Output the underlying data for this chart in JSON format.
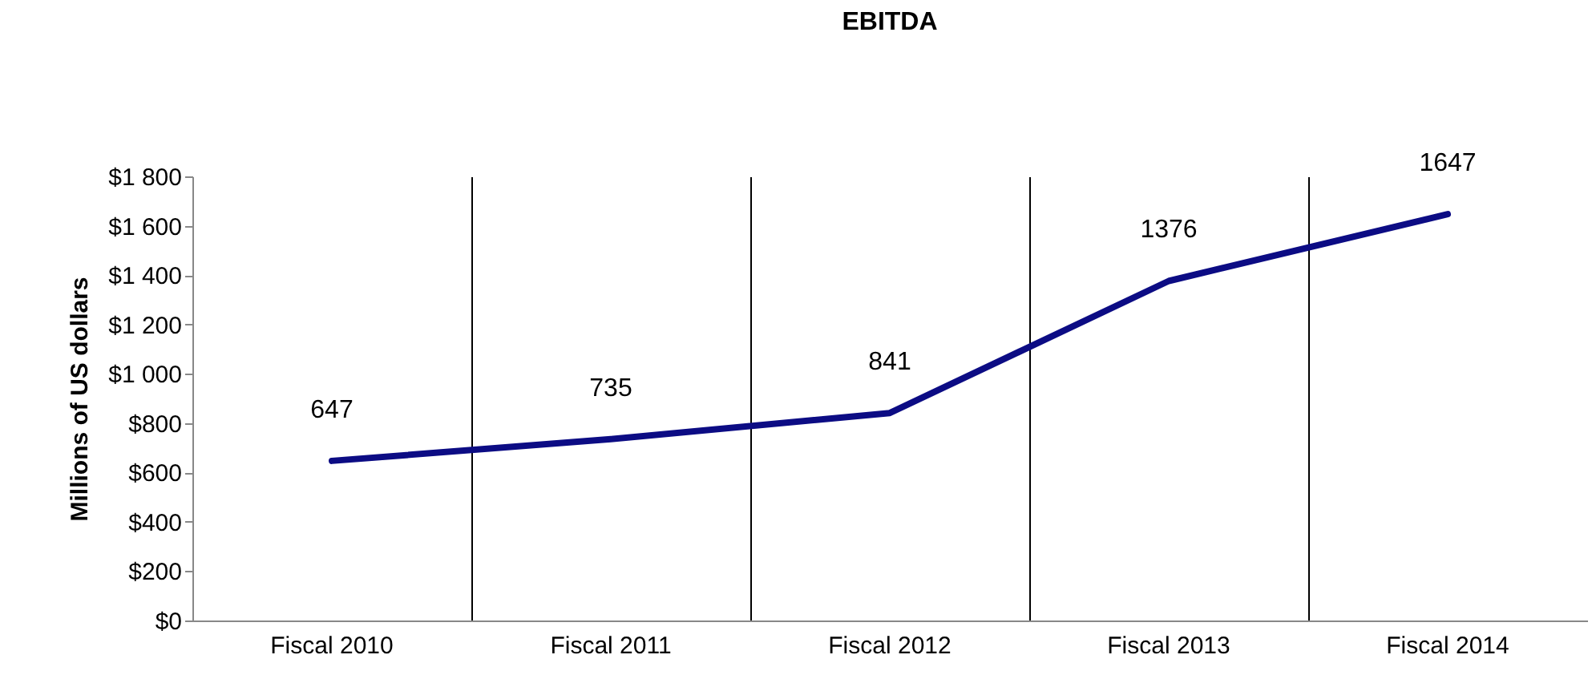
{
  "chart_data": {
    "type": "line",
    "title": "EBITDA",
    "ylabel": "Millions  of US dollars",
    "categories": [
      "Fiscal 2010",
      "Fiscal 2011",
      "Fiscal 2012",
      "Fiscal 2013",
      "Fiscal 2014"
    ],
    "series": [
      {
        "color": "#0c0c84",
        "values": [
          647,
          735,
          841,
          1376,
          1647
        ]
      }
    ],
    "ylim": [
      0,
      1800
    ],
    "yticks": [
      {
        "value": 0,
        "label": "$0"
      },
      {
        "value": 200,
        "label": "$200"
      },
      {
        "value": 400,
        "label": "$400"
      },
      {
        "value": 600,
        "label": "$600"
      },
      {
        "value": 800,
        "label": "$800"
      },
      {
        "value": 1000,
        "label": "$1 000"
      },
      {
        "value": 1200,
        "label": "$1 200"
      },
      {
        "value": 1400,
        "label": "$1 400"
      },
      {
        "value": 1600,
        "label": "$1 600"
      },
      {
        "value": 1800,
        "label": "$1 800"
      }
    ],
    "grid": "x",
    "data_labels": true,
    "marker": "none",
    "line_style": "solid"
  }
}
